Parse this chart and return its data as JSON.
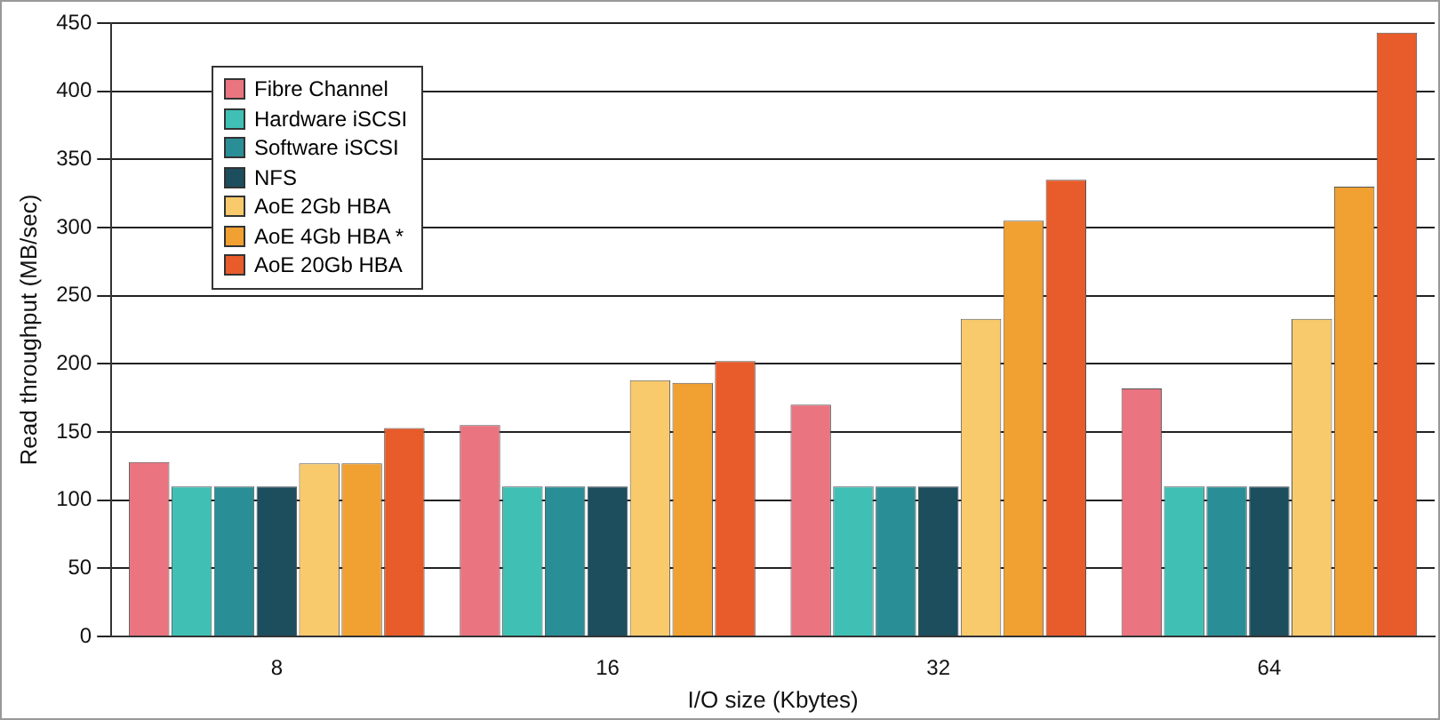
{
  "chart_data": {
    "type": "bar",
    "xlabel": "I/O size (Kbytes)",
    "ylabel": "Read throughput (MB/sec)",
    "categories": [
      "8",
      "16",
      "32",
      "64"
    ],
    "series": [
      {
        "name": "Fibre Channel",
        "color": "#ea7480",
        "values": [
          128,
          155,
          170,
          182
        ]
      },
      {
        "name": "Hardware iSCSI",
        "color": "#40c0b4",
        "values": [
          110,
          110,
          110,
          110
        ]
      },
      {
        "name": "Software iSCSI",
        "color": "#2a8e96",
        "values": [
          110,
          110,
          110,
          110
        ]
      },
      {
        "name": "NFS",
        "color": "#1c4e5e",
        "values": [
          110,
          110,
          110,
          110
        ]
      },
      {
        "name": "AoE 2Gb HBA",
        "color": "#f8ca6c",
        "values": [
          127,
          188,
          233,
          233
        ]
      },
      {
        "name": "AoE 4Gb HBA *",
        "color": "#f1a032",
        "values": [
          127,
          186,
          305,
          330
        ]
      },
      {
        "name": "AoE 20Gb HBA",
        "color": "#e85b2b",
        "values": [
          153,
          202,
          335,
          443
        ]
      }
    ],
    "ylim": [
      0,
      450
    ],
    "yticks": [
      0,
      50,
      100,
      150,
      200,
      250,
      300,
      350,
      400,
      450
    ],
    "grid": "y",
    "legend": "top left"
  }
}
